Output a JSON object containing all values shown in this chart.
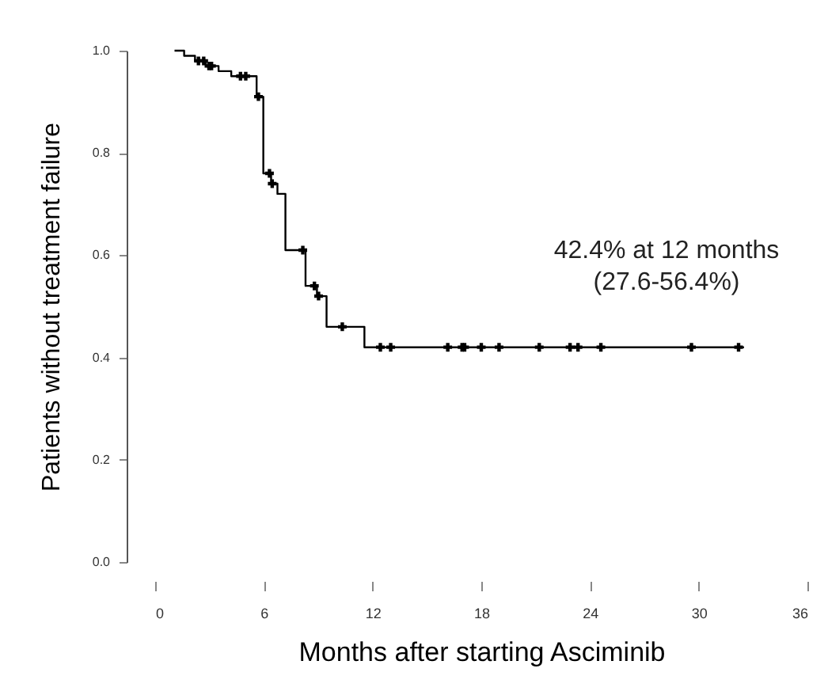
{
  "chart_data": {
    "type": "step",
    "xlabel": "Months after starting Asciminib",
    "ylabel": "Patients without treatment failure",
    "xlim": [
      0,
      36
    ],
    "xticks": [
      0,
      6,
      12,
      18,
      24,
      30,
      36
    ],
    "ylim": [
      0,
      1
    ],
    "yticks": [
      {
        "value": 0,
        "label": "0.0"
      },
      0.2,
      0.4,
      0.6,
      0.8,
      {
        "value": 1,
        "label": "1.0"
      }
    ],
    "grid": false,
    "annotations": [
      "42.4% at 12 months",
      "(27.6-56.4%)"
    ],
    "series": [
      {
        "color": "#000000",
        "marker": "none",
        "x": [
          1.07,
          1.6,
          2.2,
          2.8,
          3.5,
          4.2,
          4.6,
          5.6,
          5.97,
          6.4,
          6.75,
          7.19,
          8.3,
          8.93,
          9.46,
          11.55,
          32.5
        ],
        "values": [
          1.0,
          0.99,
          0.98,
          0.97,
          0.96,
          0.95,
          0.95,
          0.91,
          0.76,
          0.74,
          0.72,
          0.61,
          0.54,
          0.52,
          0.46,
          0.42,
          0.42
        ]
      },
      {
        "type": "scatter",
        "color": "#000000",
        "marker": "cross",
        "x": [
          2.39,
          2.68,
          2.97,
          3.11,
          4.71,
          5.0,
          5.7,
          6.31,
          6.46,
          8.15,
          8.79,
          9.02,
          10.33,
          12.43,
          13.0,
          16.15,
          16.94,
          17.08,
          18.0,
          18.98,
          21.2,
          22.9,
          23.34,
          24.6,
          29.6,
          32.2
        ],
        "values": [
          0.98,
          0.98,
          0.97,
          0.97,
          0.95,
          0.95,
          0.91,
          0.76,
          0.74,
          0.61,
          0.54,
          0.52,
          0.46,
          0.42,
          0.42,
          0.42,
          0.42,
          0.42,
          0.42,
          0.42,
          0.42,
          0.42,
          0.42,
          0.42,
          0.42,
          0.42
        ]
      }
    ]
  }
}
